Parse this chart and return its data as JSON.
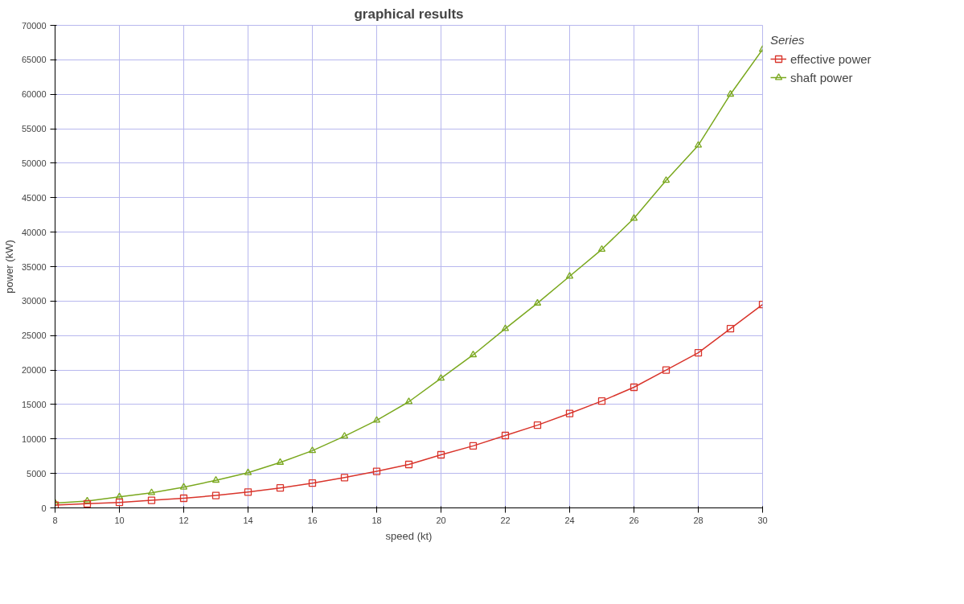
{
  "chart_data": {
    "type": "line",
    "title": "graphical results",
    "xlabel": "speed (kt)",
    "ylabel": "power (kW)",
    "legend_title": "Series",
    "x": [
      8,
      9,
      10,
      11,
      12,
      13,
      14,
      15,
      16,
      17,
      18,
      19,
      20,
      21,
      22,
      23,
      24,
      25,
      26,
      27,
      28,
      29,
      30
    ],
    "series": [
      {
        "name": "effective power",
        "color": "#d9342b",
        "marker": "square",
        "values": [
          400,
          600,
          800,
          1100,
          1400,
          1800,
          2300,
          2900,
          3600,
          4400,
          5300,
          6300,
          7700,
          9000,
          10500,
          12000,
          13700,
          15500,
          17500,
          20000,
          22500,
          26000,
          29500
        ]
      },
      {
        "name": "shaft power",
        "color": "#7aa81e",
        "marker": "triangle",
        "values": [
          700,
          1000,
          1600,
          2200,
          3000,
          4000,
          5100,
          6600,
          8300,
          10400,
          12700,
          15400,
          18800,
          22200,
          26000,
          29700,
          33600,
          37500,
          42000,
          47500,
          52600,
          60000,
          66500
        ]
      }
    ],
    "xlim": [
      8,
      30
    ],
    "xticks": [
      8,
      10,
      12,
      14,
      16,
      18,
      20,
      22,
      24,
      26,
      28,
      30
    ],
    "ylim": [
      0,
      70000
    ],
    "yticks": [
      0,
      5000,
      10000,
      15000,
      20000,
      25000,
      30000,
      35000,
      40000,
      45000,
      50000,
      55000,
      60000,
      65000,
      70000
    ],
    "grid": true,
    "legend": "top right"
  }
}
